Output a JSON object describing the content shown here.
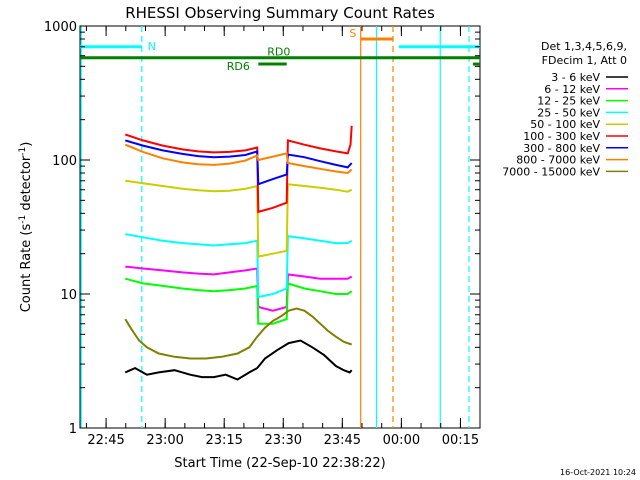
{
  "chart_data": {
    "type": "line",
    "title": "RHESSI Observing Summary Count Rates",
    "xlabel": "Start Time (22-Sep-10 22:38:22)",
    "ylabel_parts": {
      "pre": "Count Rate (s",
      "sup1": "-1",
      "mid": " detector",
      "sup2": "-1",
      "post": ")"
    },
    "y_scale": "log",
    "ylim": [
      1,
      1000
    ],
    "y_ticks": [
      {
        "value": 1,
        "label": "1"
      },
      {
        "value": 10,
        "label": "10"
      },
      {
        "value": 100,
        "label": "100"
      },
      {
        "value": 1000,
        "label": "1000"
      }
    ],
    "xlim_minutes": [
      0,
      101.6
    ],
    "x_ticks": [
      {
        "t": 6.63,
        "label": "22:45"
      },
      {
        "t": 21.63,
        "label": "23:00"
      },
      {
        "t": 36.63,
        "label": "23:15"
      },
      {
        "t": 51.63,
        "label": "23:30"
      },
      {
        "t": 66.63,
        "label": "23:45"
      },
      {
        "t": 81.63,
        "label": "00:00"
      },
      {
        "t": 96.63,
        "label": "00:15"
      }
    ],
    "legend": {
      "header": [
        "Det 1,3,4,5,6,9,",
        "FDecim 1, Att 0"
      ],
      "position": "right"
    },
    "series": [
      {
        "name": "3 - 6 keV",
        "color": "#000000",
        "points": [
          [
            11.5,
            2.6
          ],
          [
            14,
            2.8
          ],
          [
            17,
            2.5
          ],
          [
            20,
            2.6
          ],
          [
            24,
            2.7
          ],
          [
            28,
            2.5
          ],
          [
            31,
            2.4
          ],
          [
            34,
            2.4
          ],
          [
            37,
            2.5
          ],
          [
            40,
            2.3
          ],
          [
            43,
            2.6
          ],
          [
            45,
            2.8
          ],
          [
            47,
            3.3
          ],
          [
            50,
            3.8
          ],
          [
            53,
            4.3
          ],
          [
            56,
            4.5
          ],
          [
            59,
            4.0
          ],
          [
            62,
            3.5
          ],
          [
            65,
            2.9
          ],
          [
            67,
            2.7
          ],
          [
            68.5,
            2.6
          ],
          [
            69,
            2.7
          ]
        ]
      },
      {
        "name": "6 - 12 keV",
        "color": "#ff00ff",
        "points": [
          [
            11.5,
            16
          ],
          [
            16,
            15.5
          ],
          [
            21,
            15
          ],
          [
            26,
            14.5
          ],
          [
            30,
            14.2
          ],
          [
            34,
            14
          ],
          [
            38,
            14.5
          ],
          [
            42,
            15
          ],
          [
            45,
            15.5
          ],
          [
            45.3,
            8
          ],
          [
            49,
            7.5
          ],
          [
            52.5,
            8
          ],
          [
            52.8,
            14
          ],
          [
            57,
            13.5
          ],
          [
            61,
            13
          ],
          [
            65,
            13
          ],
          [
            68,
            13
          ],
          [
            69,
            13.5
          ]
        ]
      },
      {
        "name": "12 - 25 keV",
        "color": "#00ff00",
        "points": [
          [
            11.5,
            13
          ],
          [
            16,
            12
          ],
          [
            21,
            11.5
          ],
          [
            26,
            11
          ],
          [
            30,
            10.7
          ],
          [
            34,
            10.5
          ],
          [
            38,
            10.7
          ],
          [
            42,
            11
          ],
          [
            45,
            11.5
          ],
          [
            45.3,
            6
          ],
          [
            49,
            6
          ],
          [
            52.5,
            6.5
          ],
          [
            52.8,
            12
          ],
          [
            57,
            11
          ],
          [
            61,
            10.5
          ],
          [
            65,
            10
          ],
          [
            68,
            10
          ],
          [
            69,
            10.5
          ]
        ]
      },
      {
        "name": "25 - 50 keV",
        "color": "#00ffff",
        "points": [
          [
            11.5,
            28
          ],
          [
            16,
            26.5
          ],
          [
            21,
            25
          ],
          [
            26,
            24
          ],
          [
            30,
            23.5
          ],
          [
            34,
            23
          ],
          [
            38,
            23.5
          ],
          [
            42,
            24
          ],
          [
            45,
            25
          ],
          [
            45.3,
            9.5
          ],
          [
            49,
            10
          ],
          [
            52.5,
            11
          ],
          [
            52.8,
            27
          ],
          [
            57,
            26
          ],
          [
            61,
            25
          ],
          [
            65,
            24
          ],
          [
            68,
            24
          ],
          [
            69,
            25
          ]
        ]
      },
      {
        "name": "50 - 100 keV",
        "color": "#cccc00",
        "points": [
          [
            11.5,
            70
          ],
          [
            16,
            67
          ],
          [
            21,
            64
          ],
          [
            26,
            61
          ],
          [
            30,
            59.5
          ],
          [
            34,
            58.5
          ],
          [
            38,
            59
          ],
          [
            42,
            61
          ],
          [
            45,
            64
          ],
          [
            45.3,
            19
          ],
          [
            49,
            20
          ],
          [
            52.5,
            21
          ],
          [
            52.8,
            66
          ],
          [
            57,
            64
          ],
          [
            61,
            62
          ],
          [
            65,
            60
          ],
          [
            68,
            58
          ],
          [
            69,
            60
          ]
        ]
      },
      {
        "name": "100 - 300 keV",
        "color": "#ff0000",
        "points": [
          [
            11.5,
            155
          ],
          [
            16,
            140
          ],
          [
            21,
            128
          ],
          [
            26,
            120
          ],
          [
            30,
            116
          ],
          [
            34,
            114
          ],
          [
            38,
            115
          ],
          [
            42,
            118
          ],
          [
            45,
            124
          ],
          [
            45.3,
            41
          ],
          [
            49,
            44
          ],
          [
            52.5,
            48
          ],
          [
            52.8,
            140
          ],
          [
            57,
            130
          ],
          [
            61,
            122
          ],
          [
            65,
            116
          ],
          [
            68,
            112
          ],
          [
            68.7,
            130
          ],
          [
            69,
            180
          ]
        ]
      },
      {
        "name": "300 - 800 keV",
        "color": "#0000ff",
        "points": [
          [
            11.5,
            140
          ],
          [
            16,
            128
          ],
          [
            21,
            118
          ],
          [
            26,
            111
          ],
          [
            30,
            107
          ],
          [
            34,
            105
          ],
          [
            38,
            106
          ],
          [
            42,
            109
          ],
          [
            45,
            116
          ],
          [
            45.3,
            66
          ],
          [
            49,
            72
          ],
          [
            52.5,
            78
          ],
          [
            52.8,
            110
          ],
          [
            57,
            105
          ],
          [
            61,
            98
          ],
          [
            65,
            92
          ],
          [
            68,
            88
          ],
          [
            69,
            95
          ]
        ]
      },
      {
        "name": "800 - 7000 keV",
        "color": "#ff8000",
        "points": [
          [
            11.5,
            130
          ],
          [
            16,
            115
          ],
          [
            21,
            103
          ],
          [
            26,
            96
          ],
          [
            30,
            93
          ],
          [
            34,
            92
          ],
          [
            38,
            94
          ],
          [
            42,
            99
          ],
          [
            45,
            108
          ],
          [
            45.3,
            100
          ],
          [
            49,
            106
          ],
          [
            52.5,
            112
          ],
          [
            52.8,
            95
          ],
          [
            57,
            90
          ],
          [
            61,
            86
          ],
          [
            65,
            82
          ],
          [
            68,
            80
          ],
          [
            69,
            85
          ]
        ]
      },
      {
        "name": "7000 - 15000 keV",
        "color": "#808000",
        "points": [
          [
            11.5,
            6.5
          ],
          [
            13,
            5.5
          ],
          [
            15,
            4.5
          ],
          [
            17,
            4
          ],
          [
            20,
            3.6
          ],
          [
            24,
            3.4
          ],
          [
            28,
            3.3
          ],
          [
            32,
            3.3
          ],
          [
            36,
            3.4
          ],
          [
            40,
            3.6
          ],
          [
            43,
            4
          ],
          [
            45,
            4.8
          ],
          [
            47,
            5.6
          ],
          [
            49,
            6.3
          ],
          [
            51,
            6.8
          ],
          [
            53,
            7.5
          ],
          [
            55,
            7.8
          ],
          [
            57,
            7.5
          ],
          [
            59,
            6.8
          ],
          [
            61,
            6
          ],
          [
            63,
            5.3
          ],
          [
            65,
            4.8
          ],
          [
            67,
            4.4
          ],
          [
            69,
            4.2
          ]
        ]
      }
    ],
    "state_bars": [
      {
        "label": "N",
        "color": "#00ffff",
        "level": 700,
        "segments": [
          [
            0,
            15.7
          ],
          [
            81,
            101.6
          ]
        ]
      },
      {
        "label": "S",
        "color": "#ff8000",
        "level": 800,
        "segments": [
          [
            71.3,
            79.5
          ]
        ]
      },
      {
        "label": "RD0",
        "color": "#008000",
        "level": 580,
        "segments": [
          [
            0,
            101.6
          ]
        ]
      },
      {
        "label": "RD6",
        "color": "#008000",
        "level": 520,
        "segments": [
          [
            45.3,
            52.5
          ],
          [
            99.8,
            101.6
          ]
        ]
      }
    ],
    "markers": [
      {
        "t": 0.3,
        "color": "#00ffff",
        "dashed": false
      },
      {
        "t": 15.7,
        "color": "#00ffff",
        "dashed": true
      },
      {
        "t": 71.3,
        "color": "#ff8000",
        "dashed": false
      },
      {
        "t": 75.3,
        "color": "#00ffff",
        "dashed": false
      },
      {
        "t": 79.5,
        "color": "#ff8000",
        "dashed": true
      },
      {
        "t": 91.5,
        "color": "#00ffff",
        "dashed": false
      },
      {
        "t": 98.8,
        "color": "#00ffff",
        "dashed": true
      }
    ]
  },
  "footer": {
    "date": "16-Oct-2021 10:24"
  }
}
